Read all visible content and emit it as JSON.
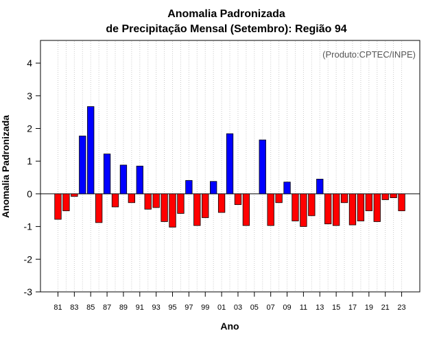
{
  "chart_data": {
    "type": "bar",
    "title_line1": "Anomalia Padronizada",
    "title_line2": "de Precipitação Mensal (Setembro): Região 94",
    "watermark": "(Produto:CPTEC/INPE)",
    "xlabel": "Ano",
    "ylabel": "Anomalia Padronizada",
    "ylim": [
      -3,
      4.6
    ],
    "yticks": [
      -3,
      -2,
      -1,
      0,
      1,
      2,
      3,
      4
    ],
    "grid": "vertical dotted",
    "colors": {
      "positive": "#0000ff",
      "negative": "#ff0000"
    },
    "categories": [
      "81",
      "82",
      "83",
      "84",
      "85",
      "86",
      "87",
      "88",
      "89",
      "90",
      "91",
      "92",
      "93",
      "94",
      "95",
      "96",
      "97",
      "98",
      "99",
      "00",
      "01",
      "02",
      "03",
      "04",
      "05",
      "06",
      "07",
      "08",
      "09",
      "10",
      "11",
      "12",
      "13",
      "14",
      "15",
      "16",
      "17",
      "18",
      "19",
      "20",
      "21",
      "22",
      "23"
    ],
    "xtick_labels": [
      "81",
      "83",
      "85",
      "87",
      "89",
      "91",
      "93",
      "95",
      "97",
      "99",
      "01",
      "03",
      "05",
      "07",
      "09",
      "11",
      "13",
      "15",
      "17",
      "19",
      "21",
      "23"
    ],
    "values": [
      -0.78,
      -0.52,
      -0.08,
      1.77,
      2.67,
      -0.88,
      1.22,
      -0.4,
      0.88,
      -0.27,
      0.85,
      -0.47,
      -0.42,
      -0.85,
      -1.02,
      -0.6,
      0.41,
      -0.97,
      -0.73,
      0.38,
      -0.57,
      1.84,
      -0.33,
      -0.97,
      0.0,
      1.65,
      -0.97,
      -0.27,
      0.36,
      -0.83,
      -1.0,
      -0.67,
      0.45,
      -0.92,
      -0.97,
      -0.27,
      -0.95,
      -0.83,
      -0.52,
      -0.85,
      -0.18,
      -0.12,
      -0.52
    ]
  }
}
